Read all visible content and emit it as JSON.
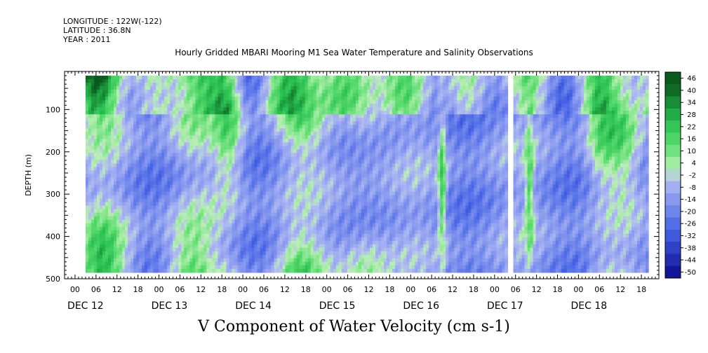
{
  "header": {
    "longitude": "LONGITUDE : 122W(-122)",
    "latitude": "LATITUDE : 36.8N",
    "year": "YEAR : 2011"
  },
  "chart_data": {
    "type": "heatmap",
    "title": "Hourly Gridded MBARI Mooring M1 Sea Water Temperature and Salinity Observations",
    "colorbar_title": "V Component of Water Velocity (cm s-1)",
    "ylabel": "DEPTH (m)",
    "ylim": [
      500,
      10
    ],
    "y_ticks": [
      100,
      200,
      300,
      400,
      500
    ],
    "x_hour_ticks": [
      "00",
      "06",
      "12",
      "18",
      "00",
      "06",
      "12",
      "18",
      "00",
      "06",
      "12",
      "18",
      "00",
      "06",
      "12",
      "18",
      "00",
      "06",
      "12",
      "18",
      "00",
      "06",
      "12",
      "18",
      "00",
      "06",
      "12",
      "18"
    ],
    "day_labels": [
      "DEC 12",
      "DEC 13",
      "DEC 14",
      "DEC 15",
      "DEC 16",
      "DEC 17",
      "DEC 18"
    ],
    "data_depth_range_m": [
      20,
      485
    ],
    "colorbar_levels": [
      -50,
      -44,
      -38,
      -32,
      -26,
      -20,
      -14,
      -8,
      -2,
      4,
      10,
      16,
      22,
      28,
      34,
      40,
      46
    ],
    "colorbar_labels": [
      "46",
      "40",
      "34",
      "28",
      "22",
      "16",
      "10",
      "4",
      "-2",
      "-8",
      "-14",
      "-20",
      "-26",
      "-32",
      "-38",
      "-44",
      "-50"
    ],
    "colors": {
      "negative_deep": "#0a0a8c",
      "negative_mid": "#4a6ee8",
      "near_zero_neg": "#aab4f2",
      "near_zero_pos": "#b8f0b4",
      "positive_mid": "#38d060",
      "positive_deep": "#0a5a1e"
    }
  }
}
